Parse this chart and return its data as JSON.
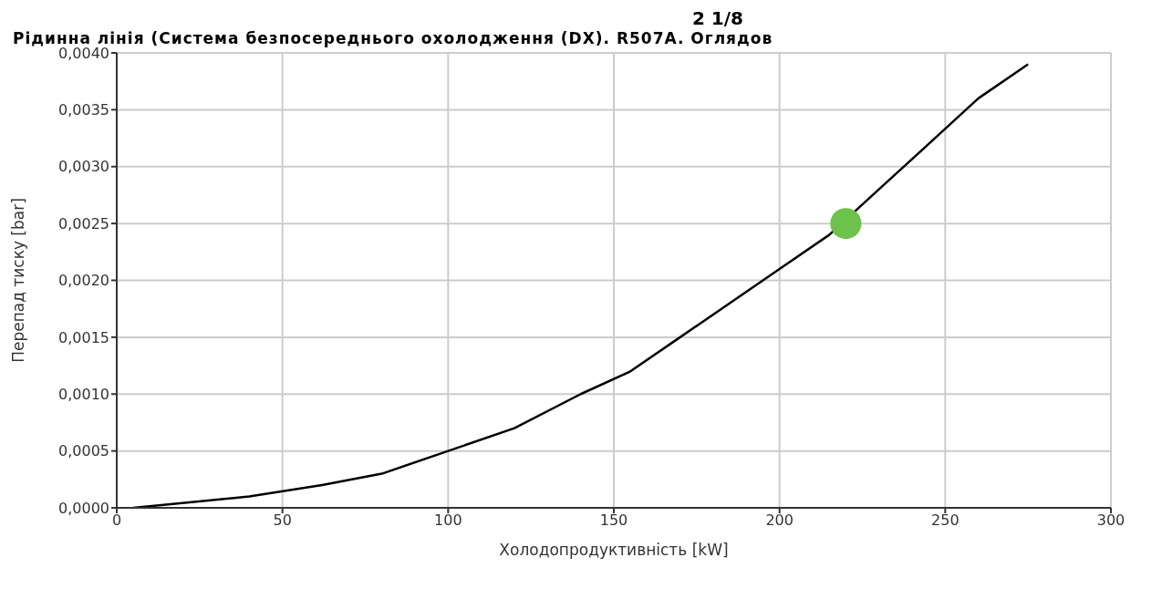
{
  "chart_data": {
    "type": "line",
    "title": "2 1/8",
    "subtitle": "Рідинна лінія (Система безпосереднього охолодження (DX). R507A. Оглядов",
    "xlabel": "Холодопродуктивність [kW]",
    "ylabel": "Перепад тиску [bar]",
    "xlim": [
      0,
      300
    ],
    "xticks": [
      0,
      50,
      100,
      150,
      200,
      250,
      300
    ],
    "ylim": [
      0,
      0.004
    ],
    "yticks": [
      {
        "value": 0,
        "label": "0,0000"
      },
      {
        "value": 0.0005,
        "label": "0,0005"
      },
      {
        "value": 0.001,
        "label": "0,0010"
      },
      {
        "value": 0.0015,
        "label": "0,0015"
      },
      {
        "value": 0.002,
        "label": "0,0020"
      },
      {
        "value": 0.0025,
        "label": "0,0025"
      },
      {
        "value": 0.003,
        "label": "0,0030"
      },
      {
        "value": 0.0035,
        "label": "0,0035"
      },
      {
        "value": 0.004,
        "label": "0,0040"
      }
    ],
    "grid": true,
    "line_style": "solid",
    "series": [
      {
        "color": "#000000",
        "marker": "none",
        "x": [
          5,
          40,
          62,
          80,
          100,
          120,
          140,
          155,
          170,
          185,
          200,
          215,
          230,
          245,
          260,
          275
        ],
        "values": [
          0,
          0.0001,
          0.0002,
          0.0003,
          0.0005,
          0.0007,
          0.001,
          0.0012,
          0.0015,
          0.0018,
          0.0021,
          0.0024,
          0.0028,
          0.0032,
          0.0036,
          0.0039
        ]
      },
      {
        "type": "scatter",
        "color": "#6cc24a",
        "marker": "circle",
        "x": [
          220
        ],
        "values": [
          0.0025
        ]
      }
    ]
  }
}
